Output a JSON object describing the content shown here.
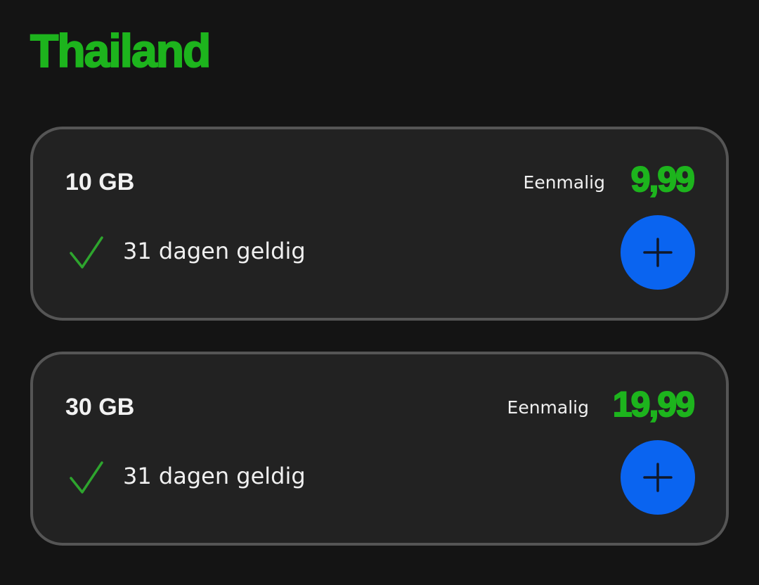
{
  "title": "Thailand",
  "colors": {
    "accent_green": "#1db41d",
    "add_button_blue": "#0a64f0",
    "background": "#141414",
    "card": "#222222"
  },
  "bundles": [
    {
      "data": "10 GB",
      "billing": "Eenmalig",
      "price": "9,99",
      "validity": "31 dagen geldig",
      "validity_icon": "check-icon",
      "add_icon": "plus-icon"
    },
    {
      "data": "30 GB",
      "billing": "Eenmalig",
      "price": "19,99",
      "validity": "31 dagen geldig",
      "validity_icon": "check-icon",
      "add_icon": "plus-icon"
    }
  ]
}
